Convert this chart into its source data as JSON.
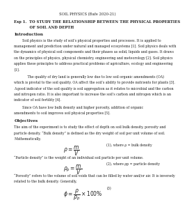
{
  "title_center": "SOIL PHYSICS (Bafe 2020-21)",
  "exp_line1": "Exp 1.  TO STUDY THE RELATIONSHIP BETWEEN THE PHYSICAL PROPERTIES",
  "exp_line2": "            OF SOIL AND DEPTH",
  "intro_heading": "Introduction",
  "intro_p1_lines": [
    "        Soil physics is the study of soil’s physical properties and processes. It is applied to",
    "management and prediction under natural and managed ecosystems [1]. Soil physics deals with",
    "the dynamics of physical soil components and their phases as solid, liquids and gases. It draws",
    "on the principles of physics, physical chemistry, engineering and meteorology [2]. Soil physics",
    "applies these principles to address practical problems of agriculture, ecology and engineering",
    "[1]."
  ],
  "intro_p2_lines": [
    "             The quality of dry land is generally low due to low soil organic amendments (OA)",
    "which is pivotal to the soil quality. OA affect the soil’s ability to provide nutrients for plants [3].",
    "A good indicator of the soil quality is soil aggregation as it relates to microbial and the carbon",
    "and nitrogen ratio. It is also important to increase the soil’s carbon and nitrogen which is an",
    "indicator of soil fertility [4]."
  ],
  "intro_p3_lines": [
    "        Since OA have low bulk density and higher porosity, addition of organic",
    "amendments to soil improves soil physical properties [5]."
  ],
  "obj_heading": "Objectives",
  "obj_p1_lines": [
    "The aim of the experiment is to study the effect of depth on soil bulk density, porosity and",
    "particle density. “Bulk density” is defined as the dry weight of soil per unit volume of soil.",
    "Mathematically,"
  ],
  "eq1_lhs": "$\\rho = \\dfrac{m}{V}$",
  "eq1_rhs": "(1), where ρ = bulk density",
  "particle_line": "“Particle density” is the weight of an individual soil particle per unit volume.",
  "eq2_lhs": "$\\rho_p = \\dfrac{m}{V}$",
  "eq2_rhs": "(2), where ρp = particle density",
  "porosity_lines": [
    "“Porosity” refers to the volume of soil voids that can be filled by water and/or air. It is inversely",
    "related to the bulk density. Generally,"
  ],
  "eq3_lhs": "$\\phi = \\dfrac{\\rho}{\\rho_p} \\times 100\\%$",
  "eq3_rhs": "(3)",
  "bg_color": "#ffffff",
  "text_color": "#222222",
  "fs_title": 3.8,
  "fs_exp": 3.8,
  "fs_heading": 4.2,
  "fs_body": 3.4,
  "fs_eq": 5.5
}
